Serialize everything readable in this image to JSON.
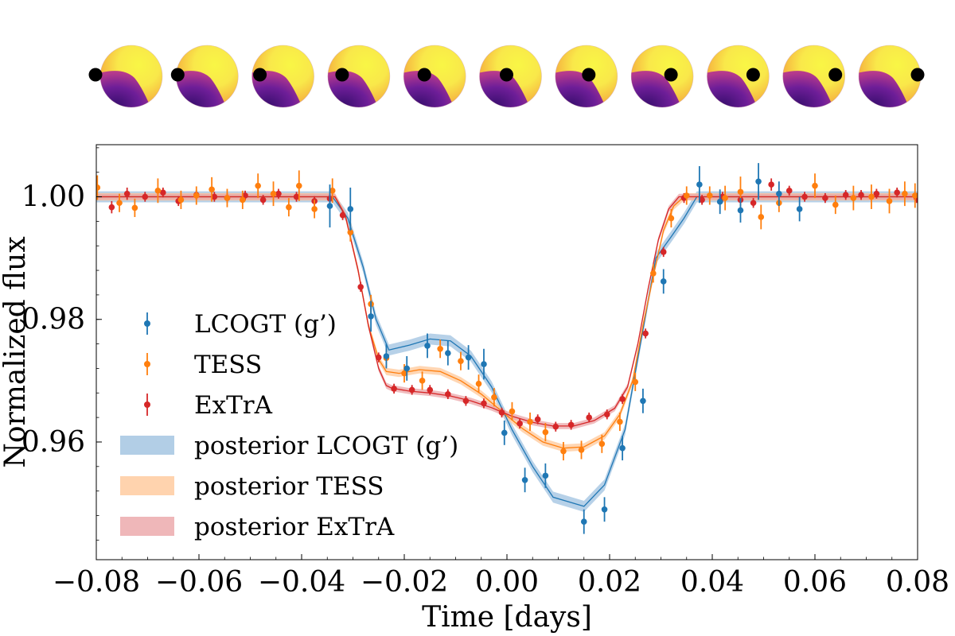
{
  "chart_data": {
    "type": "scatter",
    "xlabel": "Time [days]",
    "ylabel": "Normalized flux",
    "xlim": [
      -0.08,
      0.08
    ],
    "ylim": [
      0.9408,
      1.0085
    ],
    "x_ticks": [
      -0.08,
      -0.06,
      -0.04,
      -0.02,
      0.0,
      0.02,
      0.04,
      0.06,
      0.08
    ],
    "x_tick_labels": [
      "−0.08",
      "−0.06",
      "−0.04",
      "−0.02",
      "0.00",
      "0.02",
      "0.04",
      "0.06",
      "0.08"
    ],
    "y_ticks": [
      0.96,
      0.98,
      1.0
    ],
    "y_tick_labels": [
      "0.96",
      "0.98",
      "1.00"
    ],
    "legend_position": "lower-left",
    "colors": {
      "lcogt": "#1f77b4",
      "tess": "#ff7f0e",
      "extra": "#d62728",
      "lcogt_band": "#9fc2e0",
      "tess_band": "#ffc89a",
      "extra_band": "#eba5a8"
    },
    "legend": [
      {
        "label": "LCOGT (g’)",
        "kind": "errorbar",
        "series": "lcogt"
      },
      {
        "label": "TESS",
        "kind": "errorbar",
        "series": "tess"
      },
      {
        "label": "ExTrA",
        "kind": "errorbar",
        "series": "extra"
      },
      {
        "label": "posterior LCOGT (g’)",
        "kind": "band",
        "series": "lcogt"
      },
      {
        "label": "posterior TESS",
        "kind": "band",
        "series": "tess"
      },
      {
        "label": "posterior ExTrA",
        "kind": "band",
        "series": "extra"
      }
    ],
    "series": [
      {
        "id": "lcogt",
        "name": "LCOGT (g’)",
        "points": [
          [
            -0.0345,
            0.9985,
            0.0035
          ],
          [
            -0.0305,
            0.998,
            0.0035
          ],
          [
            -0.0265,
            0.9805,
            0.0025
          ],
          [
            -0.0235,
            0.974,
            0.002
          ],
          [
            -0.0195,
            0.972,
            0.002
          ],
          [
            -0.0155,
            0.9757,
            0.002
          ],
          [
            -0.0115,
            0.9745,
            0.002
          ],
          [
            -0.0075,
            0.9738,
            0.002
          ],
          [
            -0.0045,
            0.9727,
            0.0025
          ],
          [
            -0.0005,
            0.9615,
            0.002
          ],
          [
            0.0035,
            0.9538,
            0.002
          ],
          [
            0.0075,
            0.9545,
            0.002
          ],
          [
            0.015,
            0.947,
            0.002
          ],
          [
            0.019,
            0.949,
            0.002
          ],
          [
            0.0225,
            0.959,
            0.002
          ],
          [
            0.0265,
            0.9667,
            0.002
          ],
          [
            0.0305,
            0.9862,
            0.002
          ],
          [
            0.0375,
            1.002,
            0.003
          ],
          [
            0.0415,
            0.9992,
            0.002
          ],
          [
            0.0455,
            0.9978,
            0.002
          ],
          [
            0.049,
            1.0025,
            0.003
          ],
          [
            0.053,
            1.0005,
            0.002
          ],
          [
            0.057,
            0.998,
            0.002
          ]
        ],
        "model_t": [
          -0.08,
          -0.034,
          -0.031,
          -0.028,
          -0.0255,
          -0.023,
          -0.019,
          -0.015,
          -0.011,
          -0.007,
          -0.003,
          0.001,
          0.005,
          0.009,
          0.015,
          0.019,
          0.023,
          0.026,
          0.029,
          0.032,
          0.0345,
          0.037,
          0.08
        ],
        "model_f": [
          1.0,
          1.0,
          0.9965,
          0.9885,
          0.98,
          0.975,
          0.9758,
          0.9768,
          0.9765,
          0.974,
          0.969,
          0.962,
          0.956,
          0.951,
          0.9495,
          0.953,
          0.962,
          0.976,
          0.99,
          0.9935,
          0.9965,
          1.0,
          1.0
        ],
        "band_halfwidth": 0.0009
      },
      {
        "id": "tess",
        "name": "TESS",
        "points": [
          [
            -0.0798,
            1.0015,
            0.002
          ],
          [
            -0.0755,
            0.999,
            0.0015
          ],
          [
            -0.0725,
            0.9982,
            0.0015
          ],
          [
            -0.068,
            1.001,
            0.002
          ],
          [
            -0.0635,
            0.9995,
            0.0015
          ],
          [
            -0.0605,
            1.0002,
            0.0015
          ],
          [
            -0.0575,
            1.0012,
            0.002
          ],
          [
            -0.0545,
            0.9998,
            0.0015
          ],
          [
            -0.0515,
            0.9995,
            0.0015
          ],
          [
            -0.0485,
            1.0018,
            0.002
          ],
          [
            -0.0455,
            1.0005,
            0.002
          ],
          [
            -0.0425,
            0.9983,
            0.0015
          ],
          [
            -0.0405,
            1.0018,
            0.0025
          ],
          [
            -0.0375,
            0.998,
            0.0015
          ],
          [
            -0.034,
            1.001,
            0.002
          ],
          [
            -0.0305,
            0.9942,
            0.0015
          ],
          [
            -0.0265,
            0.9825,
            0.0015
          ],
          [
            -0.0235,
            0.9737,
            0.0015
          ],
          [
            -0.02,
            0.9712,
            0.0015
          ],
          [
            -0.0165,
            0.97,
            0.0015
          ],
          [
            -0.013,
            0.9752,
            0.0015
          ],
          [
            -0.009,
            0.9732,
            0.0015
          ],
          [
            -0.0055,
            0.9695,
            0.0015
          ],
          [
            -0.0025,
            0.9673,
            0.0015
          ],
          [
            0.001,
            0.965,
            0.0015
          ],
          [
            0.0045,
            0.9633,
            0.0015
          ],
          [
            0.0075,
            0.9616,
            0.0015
          ],
          [
            0.011,
            0.9585,
            0.0015
          ],
          [
            0.0145,
            0.9587,
            0.0015
          ],
          [
            0.0185,
            0.9597,
            0.0015
          ],
          [
            0.022,
            0.9633,
            0.0015
          ],
          [
            0.025,
            0.9698,
            0.0015
          ],
          [
            0.0285,
            0.9875,
            0.0015
          ],
          [
            0.032,
            0.9965,
            0.0015
          ],
          [
            0.035,
            1.0002,
            0.0015
          ],
          [
            0.0395,
            1.0002,
            0.0015
          ],
          [
            0.0425,
            0.9998,
            0.002
          ],
          [
            0.0455,
            1.0008,
            0.0025
          ],
          [
            0.0495,
            0.9967,
            0.002
          ],
          [
            0.053,
            0.999,
            0.0015
          ],
          [
            0.06,
            1.0018,
            0.002
          ],
          [
            0.064,
            0.9987,
            0.0015
          ],
          [
            0.0675,
            0.9998,
            0.002
          ],
          [
            0.071,
            1.0,
            0.002
          ],
          [
            0.0745,
            0.9993,
            0.002
          ],
          [
            0.0775,
            1.0005,
            0.002
          ],
          [
            0.0795,
            1.0002,
            0.002
          ]
        ],
        "model_t": [
          -0.08,
          -0.0335,
          -0.0315,
          -0.029,
          -0.027,
          -0.025,
          -0.0235,
          -0.021,
          -0.017,
          -0.013,
          -0.009,
          -0.005,
          -0.001,
          0.003,
          0.007,
          0.011,
          0.015,
          0.019,
          0.022,
          0.0245,
          0.0265,
          0.0285,
          0.0305,
          0.0325,
          0.0345,
          0.08
        ],
        "model_f": [
          1.0,
          1.0,
          0.997,
          0.988,
          0.979,
          0.9735,
          0.9715,
          0.9712,
          0.9718,
          0.9715,
          0.97,
          0.9678,
          0.965,
          0.9622,
          0.96,
          0.959,
          0.9592,
          0.961,
          0.9645,
          0.97,
          0.979,
          0.987,
          0.9945,
          0.9985,
          1.0,
          1.0
        ],
        "band_halfwidth": 0.0006
      },
      {
        "id": "extra",
        "name": "ExTrA",
        "points": [
          [
            -0.077,
            0.9983,
            0.001
          ],
          [
            -0.074,
            1.0005,
            0.001
          ],
          [
            -0.0705,
            1.0,
            0.0008
          ],
          [
            -0.067,
            1.0007,
            0.0008
          ],
          [
            -0.064,
            0.9993,
            0.0008
          ],
          [
            -0.0605,
            1.0003,
            0.0008
          ],
          [
            -0.057,
            1.0,
            0.0008
          ],
          [
            -0.0545,
            0.9998,
            0.0008
          ],
          [
            -0.051,
            1.0002,
            0.0008
          ],
          [
            -0.0475,
            0.9995,
            0.0008
          ],
          [
            -0.0445,
            1.0005,
            0.0008
          ],
          [
            -0.041,
            1.0,
            0.0008
          ],
          [
            -0.0375,
            0.9993,
            0.0008
          ],
          [
            -0.0345,
            0.9997,
            0.0008
          ],
          [
            -0.032,
            0.997,
            0.0008
          ],
          [
            -0.0285,
            0.9853,
            0.0008
          ],
          [
            -0.025,
            0.9738,
            0.0008
          ],
          [
            -0.022,
            0.9687,
            0.0008
          ],
          [
            -0.0185,
            0.9685,
            0.0008
          ],
          [
            -0.015,
            0.9685,
            0.0008
          ],
          [
            -0.0115,
            0.9678,
            0.0008
          ],
          [
            -0.008,
            0.9667,
            0.0008
          ],
          [
            -0.0045,
            0.9663,
            0.0008
          ],
          [
            -0.001,
            0.9648,
            0.0008
          ],
          [
            0.0025,
            0.963,
            0.0008
          ],
          [
            0.006,
            0.9637,
            0.0008
          ],
          [
            0.0095,
            0.9625,
            0.0008
          ],
          [
            0.0125,
            0.9628,
            0.0008
          ],
          [
            0.016,
            0.964,
            0.0008
          ],
          [
            0.0195,
            0.9645,
            0.0008
          ],
          [
            0.0225,
            0.967,
            0.0008
          ],
          [
            0.027,
            0.9777,
            0.0008
          ],
          [
            0.0305,
            0.991,
            0.0008
          ],
          [
            0.0345,
            0.9998,
            0.0008
          ],
          [
            0.038,
            0.9995,
            0.0008
          ],
          [
            0.042,
            1.0,
            0.0008
          ],
          [
            0.0455,
            0.9995,
            0.0008
          ],
          [
            0.048,
            0.999,
            0.0008
          ],
          [
            0.0515,
            1.002,
            0.001
          ],
          [
            0.055,
            1.001,
            0.0008
          ],
          [
            0.058,
            1.0,
            0.0008
          ],
          [
            0.062,
            0.9998,
            0.0008
          ],
          [
            0.066,
            1.0003,
            0.0008
          ],
          [
            0.069,
            1.0003,
            0.0008
          ],
          [
            0.072,
            1.0005,
            0.0008
          ],
          [
            0.076,
            1.0007,
            0.0008
          ],
          [
            0.0798,
            0.9998,
            0.0008
          ]
        ],
        "model_t": [
          -0.08,
          -0.0335,
          -0.0315,
          -0.029,
          -0.027,
          -0.025,
          -0.0235,
          -0.0225,
          -0.019,
          -0.015,
          -0.011,
          -0.007,
          -0.003,
          0.001,
          0.005,
          0.009,
          0.013,
          0.017,
          0.021,
          0.0235,
          0.0255,
          0.0275,
          0.0295,
          0.0315,
          0.0335,
          0.08
        ],
        "model_f": [
          1.0,
          1.0,
          0.997,
          0.988,
          0.979,
          0.972,
          0.9692,
          0.9688,
          0.9683,
          0.968,
          0.9675,
          0.9667,
          0.9656,
          0.9642,
          0.9632,
          0.9626,
          0.9626,
          0.9635,
          0.9655,
          0.969,
          0.976,
          0.985,
          0.993,
          0.998,
          1.0,
          1.0
        ],
        "band_halfwidth": 0.0005
      }
    ],
    "star_sequence": {
      "count": 11,
      "planet_positions": [
        0.0,
        0.1,
        0.2,
        0.3,
        0.4,
        0.5,
        0.6,
        0.7,
        0.8,
        0.9,
        1.0
      ],
      "star_colors": {
        "bright": "#f9f645",
        "mid": "#f4953f",
        "dark_spot": "#7a1d9a",
        "edge_spot": "#3b0f70"
      },
      "planet_color": "#000000"
    }
  }
}
